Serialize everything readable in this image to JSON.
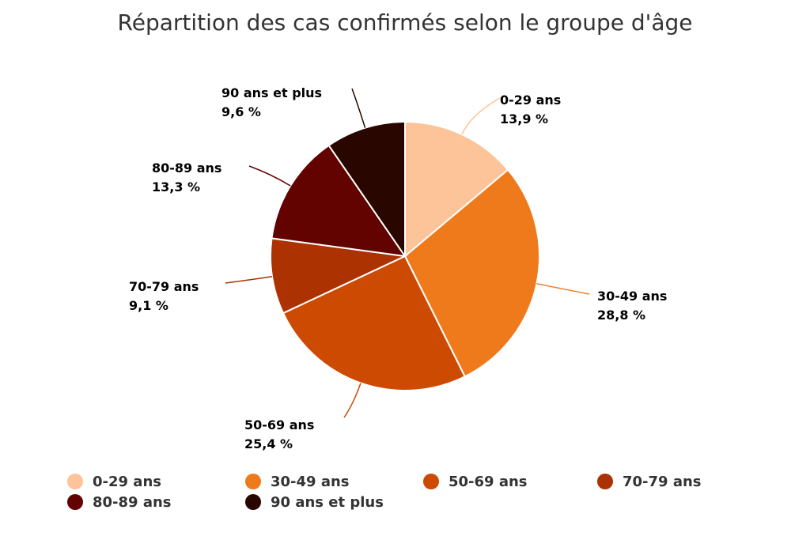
{
  "chart_data": {
    "type": "pie",
    "title": "Répartition des cas confirmés selon le groupe d'âge",
    "categories": [
      "0-29 ans",
      "30-49 ans",
      "50-69 ans",
      "70-79 ans",
      "80-89 ans",
      "90 ans et plus"
    ],
    "values": [
      13.9,
      28.8,
      25.4,
      9.1,
      13.3,
      9.6
    ],
    "value_labels": [
      "13,9 %",
      "28,8 %",
      "25,4 %",
      "9,1 %",
      "13,3 %",
      "9,6 %"
    ],
    "colors": [
      "#fdc49a",
      "#ee7a1c",
      "#cd4a03",
      "#ac3202",
      "#620300",
      "#290600"
    ],
    "legend_position": "bottom"
  }
}
